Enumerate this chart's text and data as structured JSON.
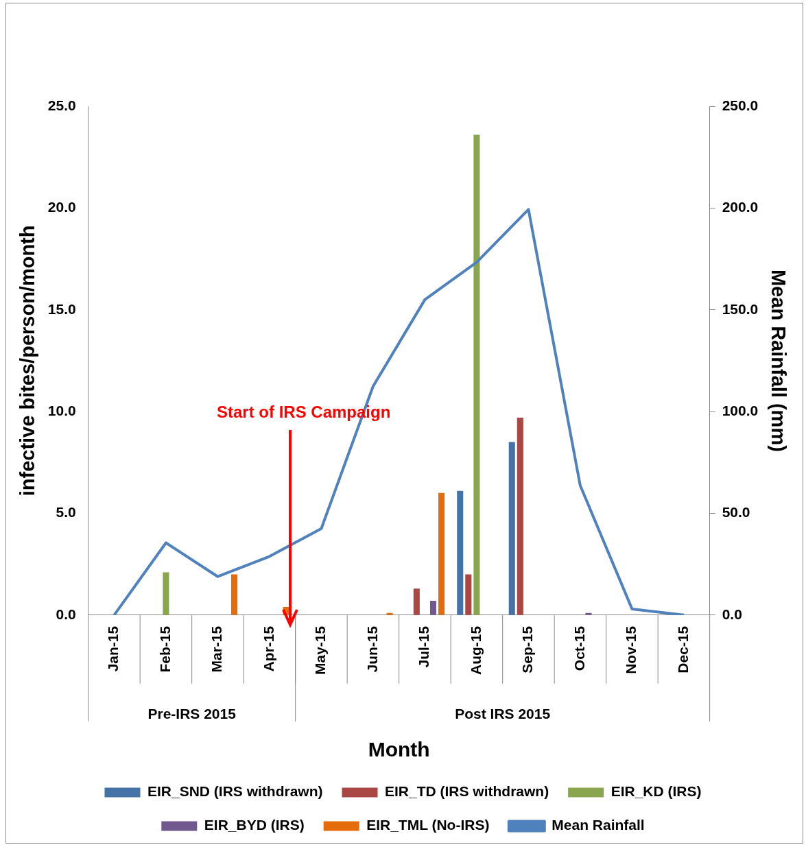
{
  "chart_data": {
    "type": "bar",
    "xlabel": "Month",
    "ylabel": "infective bites/person/month",
    "y2label": "Mean Rainfall (mm)",
    "categories": [
      "Jan-15",
      "Feb-15",
      "Mar-15",
      "Apr-15",
      "May-15",
      "Jun-15",
      "Jul-15",
      "Aug-15",
      "Sep-15",
      "Oct-15",
      "Nov-15",
      "Dec-15"
    ],
    "series": [
      {
        "name": "EIR_SND (IRS withdrawn)",
        "color": "#4572a7",
        "values": [
          null,
          null,
          null,
          null,
          null,
          null,
          null,
          6.1,
          8.5,
          null,
          null,
          null
        ]
      },
      {
        "name": "EIR_TD (IRS withdrawn)",
        "color": "#aa4643",
        "values": [
          null,
          null,
          null,
          null,
          null,
          null,
          1.3,
          2.0,
          9.7,
          null,
          null,
          null
        ]
      },
      {
        "name": "EIR_KD (IRS)",
        "color": "#89a54e",
        "values": [
          null,
          2.1,
          null,
          null,
          null,
          null,
          null,
          23.6,
          null,
          null,
          null,
          null
        ]
      },
      {
        "name": "EIR_BYD (IRS)",
        "color": "#71588f",
        "values": [
          null,
          null,
          null,
          null,
          null,
          null,
          0.7,
          null,
          null,
          0.1,
          null,
          null
        ]
      },
      {
        "name": "EIR_TML (No-IRS)",
        "color": "#e46c0a",
        "values": [
          null,
          null,
          2.0,
          0.4,
          null,
          0.1,
          6.0,
          null,
          null,
          null,
          null,
          null
        ]
      },
      {
        "name": "Mean Rainfall",
        "type": "line",
        "axis": "y2",
        "color": "#4f81bd",
        "marker": "none",
        "line_style": "solid",
        "values": [
          0,
          35.5,
          18.9,
          28.8,
          42.5,
          112.4,
          155,
          173.4,
          199.3,
          63.6,
          3,
          0
        ]
      }
    ],
    "ylim": [
      0,
      25
    ],
    "yticks": [
      {
        "value": 0,
        "label": "0.0"
      },
      {
        "value": 5,
        "label": "5.0"
      },
      {
        "value": 10,
        "label": "10.0"
      },
      {
        "value": 15,
        "label": "15.0"
      },
      {
        "value": 20,
        "label": "20.0"
      },
      {
        "value": 25,
        "label": "25.0"
      }
    ],
    "y2lim": [
      0,
      250
    ],
    "y2ticks": [
      {
        "value": 0,
        "label": "0.0"
      },
      {
        "value": 50,
        "label": "50.0"
      },
      {
        "value": 100,
        "label": "100.0"
      },
      {
        "value": 150,
        "label": "150.0"
      },
      {
        "value": 200,
        "label": "200.0"
      },
      {
        "value": 250,
        "label": "250.0"
      }
    ],
    "annotations": [
      "Start of IRS Campaign",
      "Pre-IRS 2015",
      "Post IRS 2015"
    ],
    "grid": false,
    "legend": "bottom"
  }
}
